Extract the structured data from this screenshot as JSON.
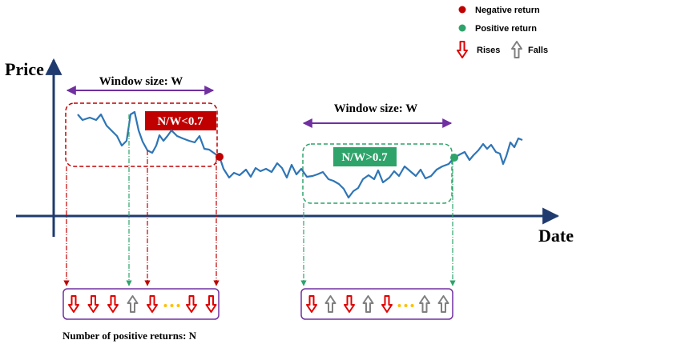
{
  "axes": {
    "y_label": "Price",
    "x_label": "Date"
  },
  "legend": {
    "negative": {
      "label": "Negative return",
      "color": "#c00000"
    },
    "positive": {
      "label": "Positive return",
      "color": "#2ea36a"
    },
    "rises": {
      "label": "Rises"
    },
    "falls": {
      "label": "Falls"
    }
  },
  "window_left": {
    "size_label": "Window size: W",
    "ratio_label": "N/W<0.7",
    "box_color": "#c00000",
    "badge_color": "#c00000",
    "arrows": [
      "rise",
      "rise",
      "rise",
      "fall",
      "rise",
      "dots",
      "rise",
      "rise"
    ]
  },
  "window_right": {
    "size_label": "Window size: W",
    "ratio_label": "N/W>0.7",
    "box_color": "#2ea36a",
    "badge_color": "#2ea36a",
    "arrows": [
      "rise",
      "fall",
      "rise",
      "fall",
      "rise",
      "dots",
      "fall",
      "fall"
    ]
  },
  "footnote": "Number of positive returns: N",
  "colors": {
    "axis": "#1f3a6e",
    "price_line": "#2e75b6",
    "window_arrow": "#7030a0",
    "strip_border": "#7030a0",
    "rise_arrow": "#e00000",
    "fall_arrow": "#7f7f7f",
    "dots": "#ffc000"
  }
}
